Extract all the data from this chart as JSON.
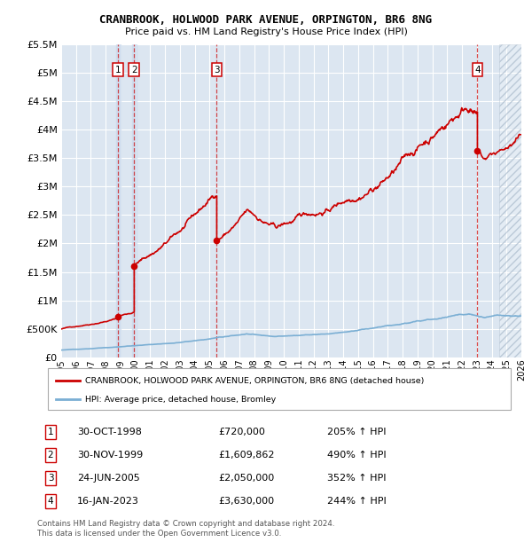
{
  "title": "CRANBROOK, HOLWOOD PARK AVENUE, ORPINGTON, BR6 8NG",
  "subtitle": "Price paid vs. HM Land Registry's House Price Index (HPI)",
  "footer1": "Contains HM Land Registry data © Crown copyright and database right 2024.",
  "footer2": "This data is licensed under the Open Government Licence v3.0.",
  "legend_label_red": "CRANBROOK, HOLWOOD PARK AVENUE, ORPINGTON, BR6 8NG (detached house)",
  "legend_label_blue": "HPI: Average price, detached house, Bromley",
  "transactions": [
    {
      "num": 1,
      "date": "30-OCT-1998",
      "price": 720000,
      "hpi_pct": "205%",
      "year": 1998.83
    },
    {
      "num": 2,
      "date": "30-NOV-1999",
      "price": 1609862,
      "hpi_pct": "490%",
      "year": 1999.92
    },
    {
      "num": 3,
      "date": "24-JUN-2005",
      "price": 2050000,
      "hpi_pct": "352%",
      "year": 2005.48
    },
    {
      "num": 4,
      "date": "16-JAN-2023",
      "price": 3630000,
      "hpi_pct": "244%",
      "year": 2023.04
    }
  ],
  "ylim": [
    0,
    5500000
  ],
  "xlim_start": 1995,
  "xlim_end": 2026,
  "bg_color": "#dce6f1",
  "red_color": "#cc0000",
  "blue_color": "#7bafd4",
  "hatch_start": 2024.5
}
